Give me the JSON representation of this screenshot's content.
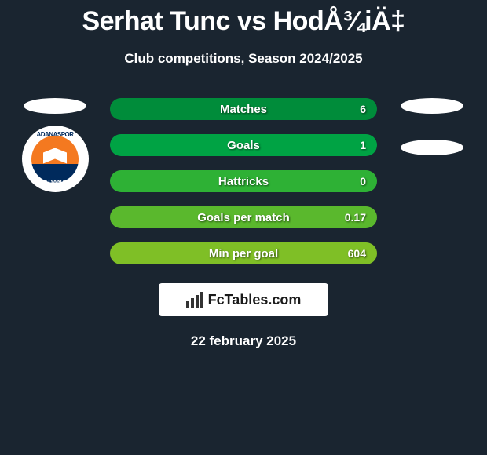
{
  "title": "Serhat Tunc vs HodÅ¾iÄ‡",
  "subtitle": "Club competitions, Season 2024/2025",
  "date": "22 february 2025",
  "branding": "FcTables.com",
  "badge": {
    "top_text": "ADANASPOR",
    "bottom_text": "ADANA",
    "outer_bg": "#ffffff",
    "primary_color": "#f47920",
    "secondary_color": "#002a5c"
  },
  "colors": {
    "page_bg": "#1a2530",
    "bar1": "#008c3a",
    "bar2": "#00a344",
    "bar3": "#2eb135",
    "bar4": "#5ab82d",
    "bar5": "#7fbf26",
    "text": "#ffffff",
    "ellipse": "#ffffff",
    "brand_bg": "#ffffff"
  },
  "stats": [
    {
      "label": "Matches",
      "value": "6"
    },
    {
      "label": "Goals",
      "value": "1"
    },
    {
      "label": "Hattricks",
      "value": "0"
    },
    {
      "label": "Goals per match",
      "value": "0.17"
    },
    {
      "label": "Min per goal",
      "value": "604"
    }
  ]
}
